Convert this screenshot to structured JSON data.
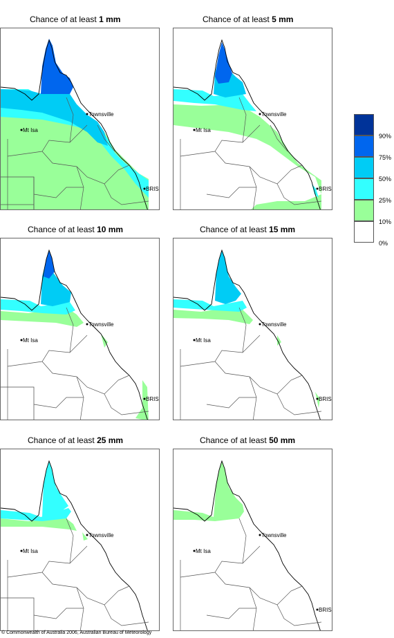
{
  "legend": {
    "bands": [
      {
        "color": "#ffffff"
      },
      {
        "color": "#99ff99"
      },
      {
        "color": "#33ffff"
      },
      {
        "color": "#00ccf5"
      },
      {
        "color": "#0066ee"
      },
      {
        "color": "#003399"
      }
    ],
    "labels": [
      "0%",
      "10%",
      "25%",
      "50%",
      "75%",
      "90%"
    ]
  },
  "places": {
    "townsville": "Townsville",
    "mt_isa": "Mt Isa",
    "bris": "BRIS"
  },
  "panels": [
    {
      "prefix": "Chance of at least",
      "amount": "1 mm"
    },
    {
      "prefix": "Chance of at least",
      "amount": "5 mm"
    },
    {
      "prefix": "Chance of at least",
      "amount": "10 mm"
    },
    {
      "prefix": "Chance of at least",
      "amount": "15 mm"
    },
    {
      "prefix": "Chance of at least",
      "amount": "25 mm"
    },
    {
      "prefix": "Chance of at least",
      "amount": "50 mm"
    }
  ],
  "copyright": "© Commonwealth of Australia 2006, Australian Bureau of Meteorology"
}
